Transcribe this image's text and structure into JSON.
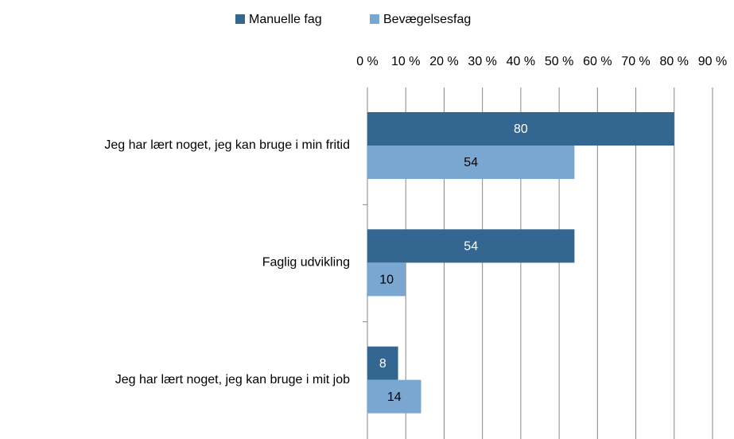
{
  "chart_data": {
    "type": "hbar",
    "categories": [
      "Jeg har lært noget, jeg kan bruge i min fritid",
      "Faglig udvikling",
      "Jeg har lært noget, jeg kan bruge i mit job"
    ],
    "series": [
      {
        "name": "Manuelle fag",
        "color": "#336690",
        "values": [
          80,
          54,
          8
        ]
      },
      {
        "name": "Bevægelsesfag",
        "color": "#7aa6d2",
        "values": [
          54,
          10,
          14
        ]
      }
    ],
    "xlim": [
      0,
      90
    ],
    "xticks": [
      {
        "value": 0,
        "label": "0 %"
      },
      {
        "value": 10,
        "label": "10 %"
      },
      {
        "value": 20,
        "label": "20 %"
      },
      {
        "value": 30,
        "label": "30 %"
      },
      {
        "value": 40,
        "label": "40 %"
      },
      {
        "value": 50,
        "label": "50 %"
      },
      {
        "value": 60,
        "label": "60 %"
      },
      {
        "value": 70,
        "label": "70 %"
      },
      {
        "value": 80,
        "label": "80 %"
      },
      {
        "value": 90,
        "label": "90 %"
      }
    ],
    "grid": true,
    "legend": "top"
  }
}
